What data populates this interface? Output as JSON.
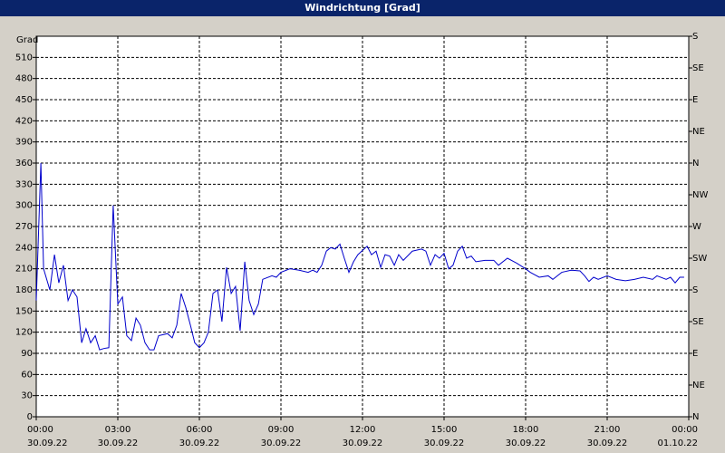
{
  "chart_data": {
    "type": "line",
    "title": "Windrichtung [Grad]",
    "y_label": "Grad",
    "x": [
      0,
      0.17,
      0.27,
      0.5,
      0.67,
      0.83,
      1,
      1.17,
      1.33,
      1.5,
      1.67,
      1.83,
      2,
      2.17,
      2.33,
      2.5,
      2.67,
      2.83,
      3,
      3.17,
      3.33,
      3.5,
      3.67,
      3.83,
      4,
      4.17,
      4.33,
      4.5,
      4.83,
      5,
      5.17,
      5.33,
      5.5,
      5.67,
      5.83,
      6,
      6.17,
      6.33,
      6.5,
      6.67,
      6.83,
      7,
      7.17,
      7.33,
      7.5,
      7.67,
      7.83,
      8,
      8.17,
      8.33,
      8.67,
      8.83,
      9,
      9.33,
      9.67,
      10,
      10.17,
      10.33,
      10.5,
      10.67,
      10.83,
      11,
      11.17,
      11.33,
      11.5,
      11.67,
      11.83,
      12.17,
      12.33,
      12.5,
      12.67,
      12.83,
      13,
      13.17,
      13.33,
      13.5,
      13.83,
      14.17,
      14.33,
      14.5,
      14.67,
      14.83,
      15,
      15.17,
      15.33,
      15.5,
      15.67,
      15.83,
      16,
      16.17,
      16.5,
      16.83,
      17,
      17.33,
      17.67,
      18,
      18.17,
      18.5,
      18.83,
      19,
      19.33,
      19.67,
      20,
      20.17,
      20.33,
      20.5,
      20.67,
      21,
      21.33,
      21.67,
      22,
      22.33,
      22.67,
      22.83,
      23.17,
      23.33,
      23.5,
      23.67,
      23.83
    ],
    "series": [
      {
        "name": "Windrichtung",
        "color": "#0000cc",
        "values": [
          165,
          360,
          210,
          180,
          230,
          190,
          215,
          165,
          180,
          170,
          105,
          125,
          105,
          115,
          95,
          97,
          98,
          300,
          160,
          170,
          115,
          108,
          140,
          130,
          105,
          95,
          95,
          115,
          118,
          112,
          130,
          175,
          155,
          130,
          105,
          98,
          105,
          120,
          175,
          180,
          135,
          212,
          175,
          185,
          122,
          220,
          165,
          145,
          160,
          195,
          200,
          198,
          205,
          210,
          208,
          205,
          208,
          205,
          215,
          235,
          240,
          238,
          245,
          225,
          205,
          220,
          230,
          242,
          230,
          235,
          212,
          230,
          228,
          215,
          230,
          222,
          235,
          238,
          235,
          215,
          230,
          225,
          232,
          210,
          215,
          235,
          242,
          225,
          228,
          220,
          222,
          222,
          215,
          225,
          218,
          210,
          205,
          198,
          200,
          195,
          205,
          208,
          207,
          200,
          192,
          198,
          195,
          200,
          195,
          193,
          195,
          198,
          195,
          200,
          195,
          198,
          190,
          198,
          198
        ]
      }
    ],
    "xlim": [
      0,
      24
    ],
    "xticks": [
      {
        "value": 0,
        "label": "00:00"
      },
      {
        "value": 3,
        "label": "03:00"
      },
      {
        "value": 6,
        "label": "06:00"
      },
      {
        "value": 9,
        "label": "09:00"
      },
      {
        "value": 12,
        "label": "12:00"
      },
      {
        "value": 15,
        "label": "15:00"
      },
      {
        "value": 18,
        "label": "18:00"
      },
      {
        "value": 21,
        "label": "21:00"
      },
      {
        "value": 24,
        "label": "00:00"
      }
    ],
    "xtick_dates": [
      "30.09.22",
      "30.09.22",
      "30.09.22",
      "30.09.22",
      "30.09.22",
      "30.09.22",
      "30.09.22",
      "30.09.22",
      "01.10.22"
    ],
    "ylim": [
      0,
      540
    ],
    "yticks": [
      0,
      30,
      60,
      90,
      120,
      150,
      180,
      210,
      240,
      270,
      300,
      330,
      360,
      390,
      420,
      450,
      480,
      510
    ],
    "y2lim": [
      0,
      540
    ],
    "y2ticks": [
      {
        "value": 0,
        "label": "N"
      },
      {
        "value": 45,
        "label": "NE"
      },
      {
        "value": 90,
        "label": "E"
      },
      {
        "value": 135,
        "label": "SE"
      },
      {
        "value": 180,
        "label": "S"
      },
      {
        "value": 225,
        "label": "SW"
      },
      {
        "value": 270,
        "label": "W"
      },
      {
        "value": 315,
        "label": "NW"
      },
      {
        "value": 360,
        "label": "N"
      },
      {
        "value": 405,
        "label": "NE"
      },
      {
        "value": 450,
        "label": "E"
      },
      {
        "value": 495,
        "label": "SE"
      },
      {
        "value": 540,
        "label": "S"
      }
    ],
    "grid": true
  }
}
